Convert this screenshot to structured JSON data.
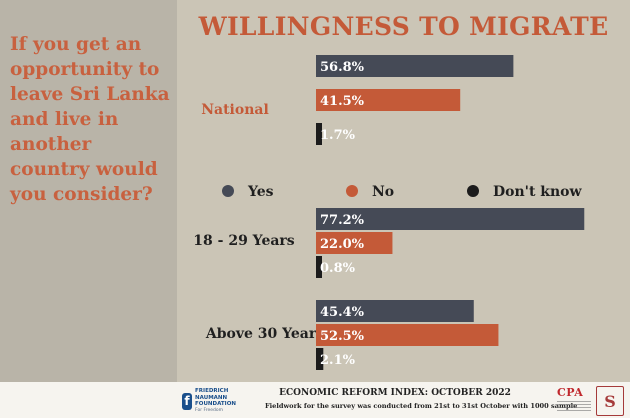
{
  "question": "If you get an opportunity to leave Sri Lanka and live in another country would you consider?",
  "colors": {
    "yes": "#454a56",
    "no": "#c45a38",
    "dont_know": "#1c1c1c",
    "title": "#c45a38"
  },
  "chart_data": {
    "type": "bar",
    "orientation": "horizontal",
    "title": "WILLINGNESS TO MIGRATE",
    "categories": [
      "National",
      "18 - 29 Years",
      "Above 30 Years"
    ],
    "series": [
      {
        "name": "Yes",
        "values": [
          56.8,
          77.2,
          45.4
        ]
      },
      {
        "name": "No",
        "values": [
          41.5,
          22.0,
          52.5
        ]
      },
      {
        "name": "Don't know",
        "values": [
          1.7,
          0.8,
          2.1
        ]
      }
    ],
    "value_labels": [
      [
        "56.8%",
        "41.5%",
        "1.7%"
      ],
      [
        "77.2%",
        "22.0%",
        "0.8%"
      ],
      [
        "45.4%",
        "52.5%",
        "2.1%"
      ]
    ],
    "xlim": [
      0,
      80
    ],
    "legend_position": "middle",
    "grid": false
  },
  "footer": {
    "title": "ECONOMIC REFORM INDEX: OCTOBER 2022",
    "subtitle": "Fieldwork for the survey was conducted from 21st to 31st October with 1000 sample",
    "logo_fnf": "FRIEDRICH NAUMANN FOUNDATION",
    "logo_fnf_sub": "For Freedom",
    "logo_cpa": "CPA"
  }
}
